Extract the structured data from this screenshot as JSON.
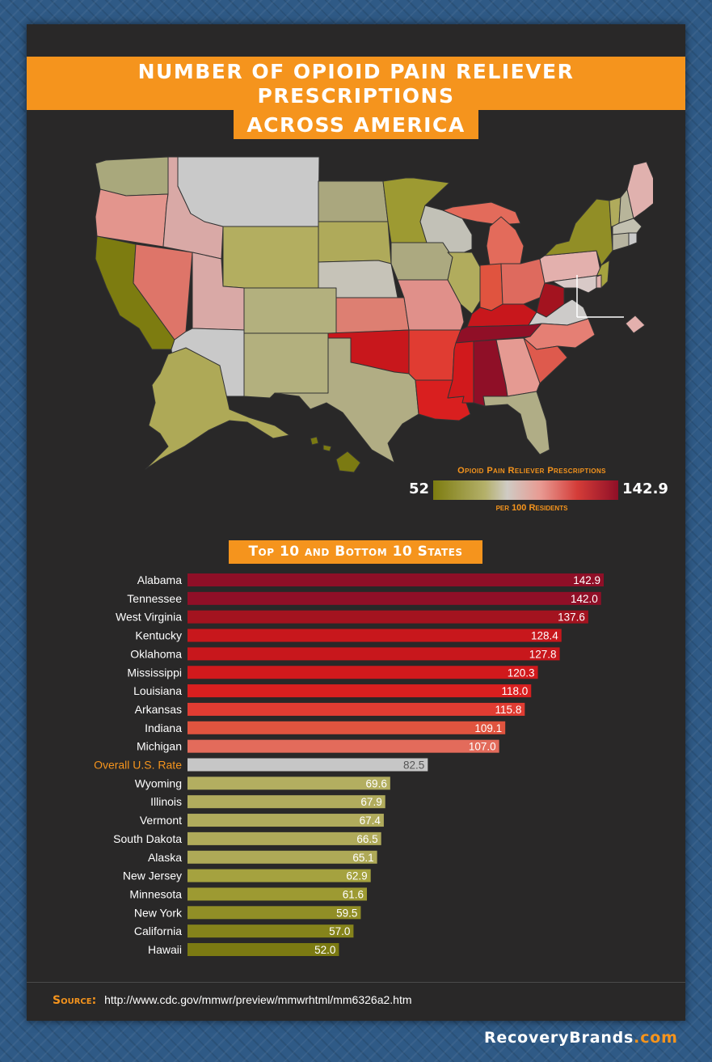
{
  "title_lines": [
    "Number of Opioid Pain Reliever Prescriptions",
    "Across America"
  ],
  "legend": {
    "title": "Opioid Pain Reliever Prescriptions",
    "subtitle": "per 100 Residents",
    "min": "52",
    "max": "142.9",
    "colors": [
      "#7d7c10",
      "#b4b06a",
      "#cfcbc4",
      "#e89a92",
      "#d43c38",
      "#8f0f27"
    ]
  },
  "chart_title": "Top 10 and Bottom 10 States",
  "chart_data": {
    "type": "bar",
    "orientation": "horizontal",
    "title": "Top 10 and Bottom 10 States",
    "categories": [
      "Alabama",
      "Tennessee",
      "West Virginia",
      "Kentucky",
      "Oklahoma",
      "Mississippi",
      "Louisiana",
      "Arkansas",
      "Indiana",
      "Michigan",
      "Overall U.S. Rate",
      "Wyoming",
      "Illinois",
      "Vermont",
      "South Dakota",
      "Alaska",
      "New Jersey",
      "Minnesota",
      "New York",
      "California",
      "Hawaii"
    ],
    "values": [
      142.9,
      142.0,
      137.6,
      128.4,
      127.8,
      120.3,
      118.0,
      115.8,
      109.1,
      107.0,
      82.5,
      69.6,
      67.9,
      67.4,
      66.5,
      65.1,
      62.9,
      61.6,
      59.5,
      57.0,
      52.0
    ],
    "value_labels": [
      "142.9",
      "142.0",
      "137.6",
      "128.4",
      "127.8",
      "120.3",
      "118.0",
      "115.8",
      "109.1",
      "107.0",
      "82.5",
      "69.6",
      "67.9",
      "67.4",
      "66.5",
      "65.1",
      "62.9",
      "61.6",
      "59.5",
      "57.0",
      "52.0"
    ],
    "colors": [
      "#8f0f27",
      "#900f27",
      "#a3131f",
      "#c8171c",
      "#c8171c",
      "#d1191c",
      "#d91f1f",
      "#e03c32",
      "#e0543f",
      "#e36b5b",
      "#c6c6c6",
      "#b3ae60",
      "#b1ac5d",
      "#b0ab5c",
      "#afaa5a",
      "#aea957",
      "#a5a23f",
      "#9d9a32",
      "#918e26",
      "#85831b",
      "#7b7a12"
    ],
    "highlight_category": "Overall U.S. Rate",
    "highlight_color": "#f5941d",
    "xlim": [
      0,
      142.9
    ]
  },
  "source": {
    "label": "Source:",
    "url": "http://www.cdc.gov/mmwr/preview/mmwrhtml/mm6326a2.htm"
  },
  "brand": {
    "name": "RecoveryBrands",
    "tld": ".com"
  },
  "map": {
    "state_colors": {
      "WA": "#a9a87c",
      "OR": "#e3958d",
      "CA": "#7d7c10",
      "NV": "#de7569",
      "ID": "#d9a9a6",
      "MT": "#c9c9c9",
      "WY": "#b3ae60",
      "UT": "#d9a9a6",
      "AZ": "#c9c9c9",
      "CO": "#b3b07e",
      "NM": "#b3b07e",
      "ND": "#aaa77e",
      "SD": "#afaa5a",
      "NE": "#c6c3b8",
      "KS": "#dd7f72",
      "OK": "#c8171c",
      "TX": "#b1ad84",
      "MN": "#9d9a32",
      "IA": "#aca980",
      "MO": "#e0908a",
      "AR": "#e03c32",
      "LA": "#d91f1f",
      "WI": "#c2c1b7",
      "IL": "#b1ac5d",
      "MI": "#e36b5b",
      "IN": "#e0543f",
      "OH": "#de6a5e",
      "KY": "#c8171c",
      "TN": "#900f27",
      "MS": "#d1191c",
      "AL": "#8f0f27",
      "WV": "#a3131f",
      "VA": "#cdcbc9",
      "NC": "#e57f74",
      "SC": "#de5a4d",
      "GA": "#e59a92",
      "FL": "#b0ad86",
      "PA": "#e3b0ad",
      "NY": "#918e26",
      "VT": "#b0ab5c",
      "NH": "#b8b59a",
      "ME": "#e0b1ae",
      "MA": "#c2c0b0",
      "CT": "#b7b4a0",
      "RI": "#c9c9c9",
      "NJ": "#a5a23f",
      "DE": "#e0b1ae",
      "MD": "#d8c9c7",
      "DC": "#e3b0ad",
      "AK": "#aea957",
      "HI": "#7b7a12"
    }
  }
}
